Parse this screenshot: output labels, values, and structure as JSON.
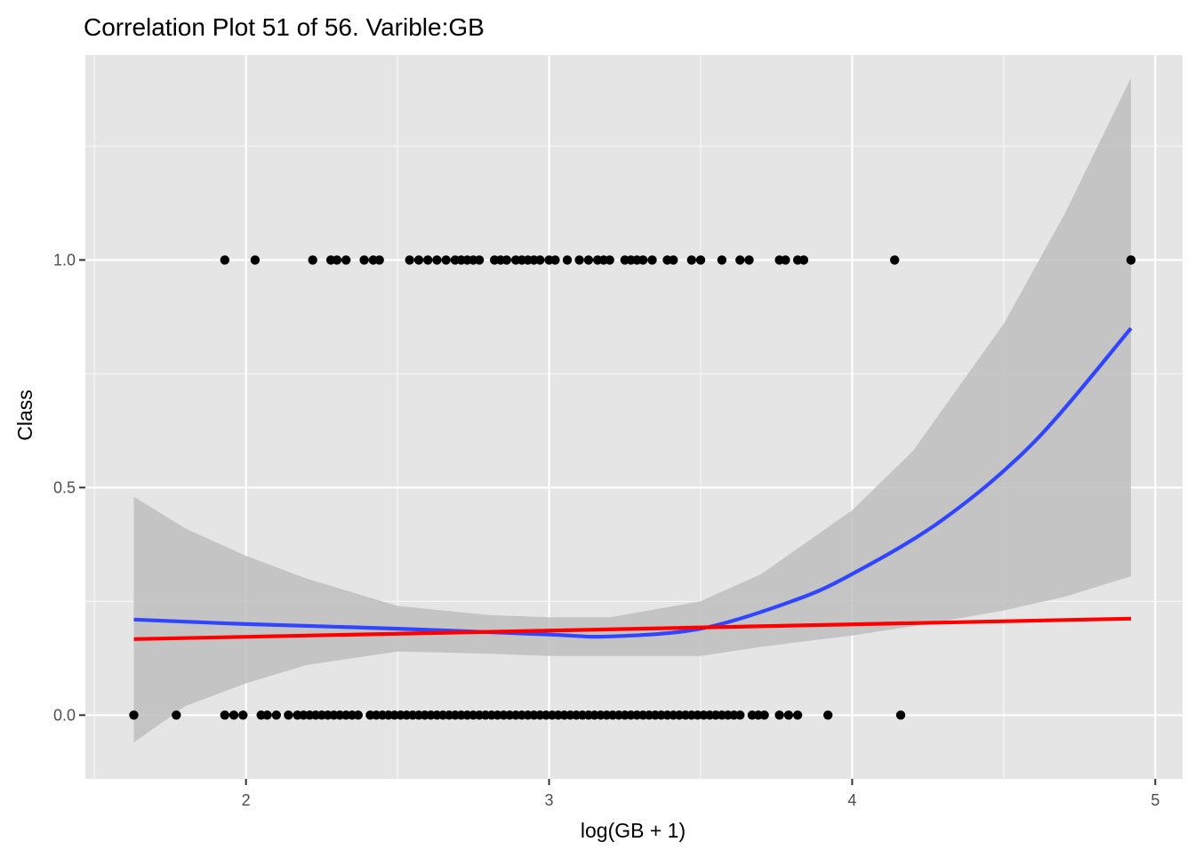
{
  "chart_data": {
    "type": "scatter",
    "title": "Correlation Plot 51 of 56. Varible:GB",
    "xlabel": "log(GB + 1)",
    "ylabel": "Class",
    "xlim": [
      1.47,
      5.09
    ],
    "ylim": [
      -0.14,
      1.45
    ],
    "x_ticks": [
      2,
      3,
      4,
      5
    ],
    "x_tick_labels": [
      "2",
      "3",
      "4",
      "5"
    ],
    "y_ticks": [
      0.0,
      0.5,
      1.0
    ],
    "y_tick_labels": [
      "0.0",
      "0.5",
      "1.0"
    ],
    "grid": true,
    "background": "#e5e5e5",
    "colors": {
      "points": "#000000",
      "loess_line": "#3145ff",
      "linear_line": "#ff0000",
      "ribbon": "#bebebe",
      "grid": "#ffffff"
    },
    "series": [
      {
        "kind": "points",
        "class": 1,
        "x": [
          1.93,
          2.03,
          2.22,
          2.28,
          2.3,
          2.33,
          2.39,
          2.42,
          2.44,
          2.54,
          2.57,
          2.6,
          2.63,
          2.66,
          2.69,
          2.71,
          2.73,
          2.75,
          2.77,
          2.82,
          2.84,
          2.86,
          2.89,
          2.91,
          2.93,
          2.95,
          2.97,
          3.0,
          3.02,
          3.06,
          3.1,
          3.13,
          3.16,
          3.18,
          3.2,
          3.25,
          3.27,
          3.29,
          3.31,
          3.34,
          3.39,
          3.41,
          3.47,
          3.5,
          3.57,
          3.63,
          3.66,
          3.76,
          3.78,
          3.82,
          3.84,
          4.14,
          4.92
        ],
        "y": [
          1,
          1,
          1,
          1,
          1,
          1,
          1,
          1,
          1,
          1,
          1,
          1,
          1,
          1,
          1,
          1,
          1,
          1,
          1,
          1,
          1,
          1,
          1,
          1,
          1,
          1,
          1,
          1,
          1,
          1,
          1,
          1,
          1,
          1,
          1,
          1,
          1,
          1,
          1,
          1,
          1,
          1,
          1,
          1,
          1,
          1,
          1,
          1,
          1,
          1,
          1,
          1,
          1
        ]
      },
      {
        "kind": "points",
        "class": 0,
        "x": [
          1.63,
          1.77,
          1.93,
          1.96,
          1.99,
          2.05,
          2.07,
          2.1,
          2.14,
          2.17,
          2.19,
          2.21,
          2.23,
          2.25,
          2.27,
          2.29,
          2.31,
          2.33,
          2.35,
          2.37,
          2.41,
          2.43,
          2.45,
          2.47,
          2.49,
          2.51,
          2.53,
          2.55,
          2.57,
          2.59,
          2.61,
          2.63,
          2.65,
          2.67,
          2.69,
          2.71,
          2.73,
          2.75,
          2.77,
          2.79,
          2.81,
          2.83,
          2.85,
          2.87,
          2.89,
          2.91,
          2.93,
          2.95,
          2.97,
          2.99,
          3.01,
          3.03,
          3.05,
          3.07,
          3.09,
          3.11,
          3.13,
          3.15,
          3.17,
          3.19,
          3.21,
          3.23,
          3.25,
          3.27,
          3.29,
          3.31,
          3.33,
          3.35,
          3.37,
          3.39,
          3.41,
          3.43,
          3.45,
          3.47,
          3.49,
          3.51,
          3.53,
          3.55,
          3.57,
          3.59,
          3.61,
          3.63,
          3.67,
          3.69,
          3.71,
          3.76,
          3.79,
          3.82,
          3.92,
          4.16
        ],
        "y": [
          0,
          0,
          0,
          0,
          0,
          0,
          0,
          0,
          0,
          0,
          0,
          0,
          0,
          0,
          0,
          0,
          0,
          0,
          0,
          0,
          0,
          0,
          0,
          0,
          0,
          0,
          0,
          0,
          0,
          0,
          0,
          0,
          0,
          0,
          0,
          0,
          0,
          0,
          0,
          0,
          0,
          0,
          0,
          0,
          0,
          0,
          0,
          0,
          0,
          0,
          0,
          0,
          0,
          0,
          0,
          0,
          0,
          0,
          0,
          0,
          0,
          0,
          0,
          0,
          0,
          0,
          0,
          0,
          0,
          0,
          0,
          0,
          0,
          0,
          0,
          0,
          0,
          0,
          0,
          0,
          0,
          0,
          0,
          0,
          0,
          0,
          0,
          0,
          0,
          0
        ]
      },
      {
        "kind": "line",
        "x": [
          1.63,
          2.0,
          2.5,
          3.0,
          3.2,
          3.5,
          3.8,
          4.0,
          4.3,
          4.6,
          4.92
        ],
        "y": [
          0.21,
          0.2,
          0.19,
          0.177,
          0.173,
          0.19,
          0.25,
          0.31,
          0.43,
          0.6,
          0.85
        ]
      },
      {
        "kind": "line",
        "x": [
          1.63,
          4.92
        ],
        "y": [
          0.167,
          0.212
        ]
      },
      {
        "kind": "band",
        "x": [
          1.63,
          1.8,
          2.0,
          2.2,
          2.5,
          2.8,
          3.0,
          3.2,
          3.5,
          3.7,
          4.0,
          4.2,
          4.5,
          4.7,
          4.92
        ],
        "y_low": [
          -0.06,
          0.02,
          0.07,
          0.11,
          0.14,
          0.135,
          0.13,
          0.13,
          0.13,
          0.15,
          0.175,
          0.195,
          0.23,
          0.26,
          0.305
        ],
        "y_high": [
          0.48,
          0.41,
          0.35,
          0.3,
          0.24,
          0.22,
          0.215,
          0.215,
          0.25,
          0.31,
          0.45,
          0.58,
          0.86,
          1.1,
          1.4
        ]
      }
    ]
  }
}
